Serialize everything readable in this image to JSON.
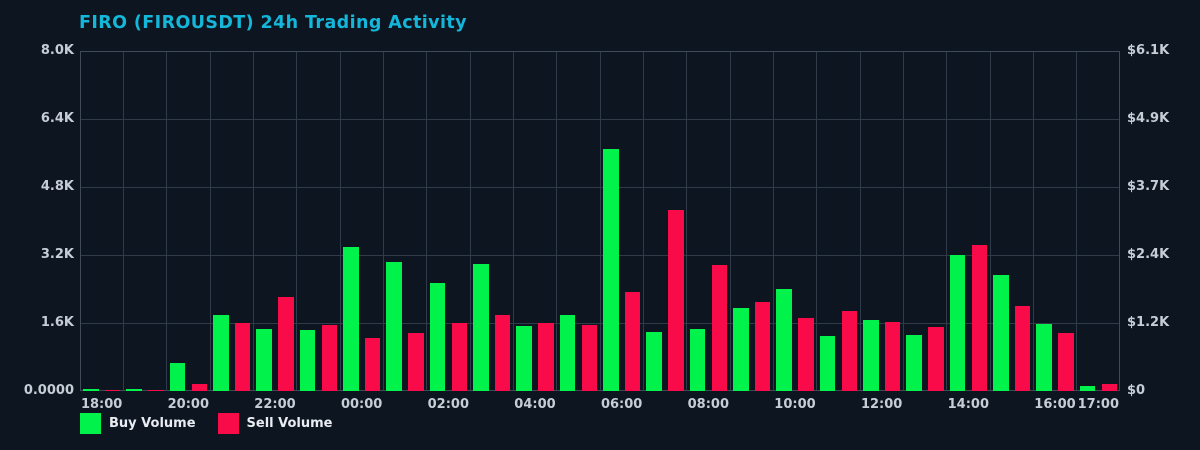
{
  "title": "FIRO (FIROUSDT) 24h Trading Activity",
  "legend": {
    "buy_label": "Buy Volume",
    "sell_label": "Sell Volume"
  },
  "colors": {
    "background": "#0d1620",
    "title": "#14b6d9",
    "grid": "#303b49",
    "axis_text": "#c7cdd6",
    "buy": "#00f24b",
    "sell": "#f90a48"
  },
  "chart_data": {
    "type": "bar",
    "title": "FIRO (FIROUSDT) 24h Trading Activity",
    "categories": [
      "18:00",
      "19:00",
      "20:00",
      "21:00",
      "22:00",
      "23:00",
      "00:00",
      "01:00",
      "02:00",
      "03:00",
      "04:00",
      "05:00",
      "06:00",
      "07:00",
      "08:00",
      "09:00",
      "10:00",
      "11:00",
      "12:00",
      "13:00",
      "14:00",
      "15:00",
      "16:00",
      "17:00"
    ],
    "series": [
      {
        "name": "Buy Volume",
        "color": "#00f24b",
        "values": [
          50,
          50,
          660,
          1780,
          1470,
          1440,
          3390,
          3030,
          2550,
          3000,
          1540,
          1800,
          5690,
          1400,
          1470,
          1950,
          2400,
          1290,
          1670,
          1320,
          3190,
          2720,
          1580,
          120
        ]
      },
      {
        "name": "Sell Volume",
        "color": "#f90a48",
        "values": [
          35,
          35,
          175,
          1590,
          2220,
          1550,
          1250,
          1370,
          1590,
          1790,
          1590,
          1550,
          2320,
          4260,
          2960,
          2090,
          1720,
          1880,
          1620,
          1500,
          3430,
          2000,
          1370,
          170
        ]
      }
    ],
    "ylim": [
      0,
      8000
    ],
    "y_left_ticklabels_top_to_bottom": [
      "8.0K",
      "6.4K",
      "4.8K",
      "3.2K",
      "1.6K",
      "0.0000"
    ],
    "y_right_ticklabels_top_to_bottom": [
      "$6.1K",
      "$4.9K",
      "$3.7K",
      "$2.4K",
      "$1.2K",
      "$0"
    ],
    "x_ticks": [
      {
        "index": 0,
        "label": "18:00"
      },
      {
        "index": 2,
        "label": "20:00"
      },
      {
        "index": 4,
        "label": "22:00"
      },
      {
        "index": 6,
        "label": "00:00"
      },
      {
        "index": 8,
        "label": "02:00"
      },
      {
        "index": 10,
        "label": "04:00"
      },
      {
        "index": 12,
        "label": "06:00"
      },
      {
        "index": 14,
        "label": "08:00"
      },
      {
        "index": 16,
        "label": "10:00"
      },
      {
        "index": 18,
        "label": "12:00"
      },
      {
        "index": 20,
        "label": "14:00"
      },
      {
        "index": 22,
        "label": "16:00"
      },
      {
        "index": 23,
        "label": "17:00"
      }
    ],
    "grid": true,
    "legend_position": "bottom-left"
  }
}
